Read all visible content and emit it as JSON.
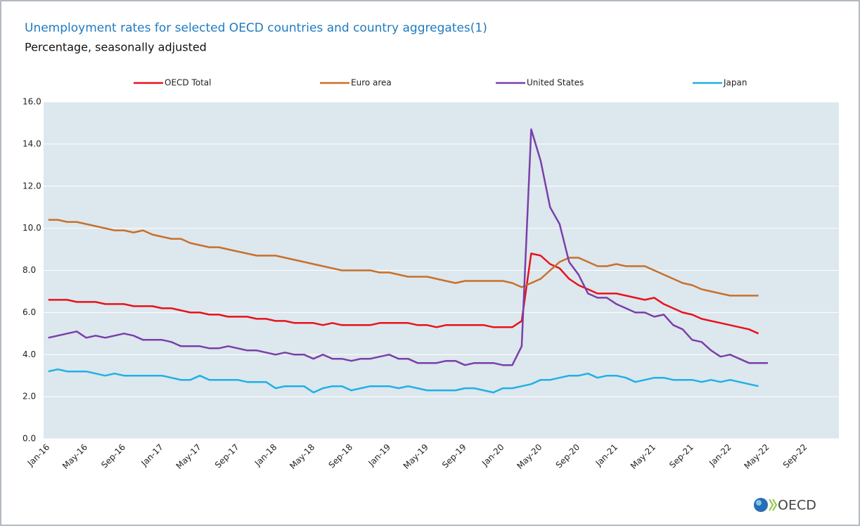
{
  "chart_data": {
    "type": "line",
    "title": "Unemployment rates for selected OECD countries and country aggregates(1)",
    "subtitle": "Percentage, seasonally adjusted",
    "categories": [
      "Jan-16",
      null,
      null,
      null,
      "May-16",
      null,
      null,
      null,
      "Sep-16",
      null,
      null,
      null,
      "Jan-17",
      null,
      null,
      null,
      "May-17",
      null,
      null,
      null,
      "Sep-17",
      null,
      null,
      null,
      "Jan-18",
      null,
      null,
      null,
      "May-18",
      null,
      null,
      null,
      "Sep-18",
      null,
      null,
      null,
      "Jan-19",
      null,
      null,
      null,
      "May-19",
      null,
      null,
      null,
      "Sep-19",
      null,
      null,
      null,
      "Jan-20",
      null,
      null,
      null,
      "May-20",
      null,
      null,
      null,
      "Sep-20",
      null,
      null,
      null,
      "Jan-21",
      null,
      null,
      null,
      "May-21",
      null,
      null,
      null,
      "Sep-21",
      null,
      null,
      null,
      "Jan-22",
      null,
      null,
      null,
      "May-22",
      null,
      null,
      null,
      "Sep-22",
      null,
      null,
      null
    ],
    "series": [
      {
        "name": "OECD Total",
        "color": "#e8121b",
        "values": [
          6.6,
          6.6,
          6.6,
          6.5,
          6.5,
          6.5,
          6.4,
          6.4,
          6.4,
          6.3,
          6.3,
          6.3,
          6.2,
          6.2,
          6.1,
          6.0,
          6.0,
          5.9,
          5.9,
          5.8,
          5.8,
          5.8,
          5.7,
          5.7,
          5.6,
          5.6,
          5.5,
          5.5,
          5.5,
          5.4,
          5.5,
          5.4,
          5.4,
          5.4,
          5.4,
          5.5,
          5.5,
          5.5,
          5.5,
          5.4,
          5.4,
          5.3,
          5.4,
          5.4,
          5.4,
          5.4,
          5.4,
          5.3,
          5.3,
          5.3,
          5.6,
          8.8,
          8.7,
          8.3,
          8.1,
          7.6,
          7.3,
          7.1,
          6.9,
          6.9,
          6.9,
          6.8,
          6.7,
          6.6,
          6.7,
          6.4,
          6.2,
          6.0,
          5.9,
          5.7,
          5.6,
          5.5,
          5.4,
          5.3,
          5.2,
          5.0,
          null,
          null,
          null,
          null,
          null,
          null,
          null,
          null
        ]
      },
      {
        "name": "Euro area",
        "color": "#c8702a",
        "values": [
          10.4,
          10.4,
          10.3,
          10.3,
          10.2,
          10.1,
          10.0,
          9.9,
          9.9,
          9.8,
          9.9,
          9.7,
          9.6,
          9.5,
          9.5,
          9.3,
          9.2,
          9.1,
          9.1,
          9.0,
          8.9,
          8.8,
          8.7,
          8.7,
          8.7,
          8.6,
          8.5,
          8.4,
          8.3,
          8.2,
          8.1,
          8.0,
          8.0,
          8.0,
          8.0,
          7.9,
          7.9,
          7.8,
          7.7,
          7.7,
          7.7,
          7.6,
          7.5,
          7.4,
          7.5,
          7.5,
          7.5,
          7.5,
          7.5,
          7.4,
          7.2,
          7.4,
          7.6,
          8.0,
          8.4,
          8.6,
          8.6,
          8.4,
          8.2,
          8.2,
          8.3,
          8.2,
          8.2,
          8.2,
          8.0,
          7.8,
          7.6,
          7.4,
          7.3,
          7.1,
          7.0,
          6.9,
          6.8,
          6.8,
          6.8,
          6.8,
          null,
          null,
          null,
          null,
          null,
          null,
          null,
          null
        ]
      },
      {
        "name": "United States",
        "color": "#7a3fa8",
        "values": [
          4.8,
          4.9,
          5.0,
          5.1,
          4.8,
          4.9,
          4.8,
          4.9,
          5.0,
          4.9,
          4.7,
          4.7,
          4.7,
          4.6,
          4.4,
          4.4,
          4.4,
          4.3,
          4.3,
          4.4,
          4.3,
          4.2,
          4.2,
          4.1,
          4.0,
          4.1,
          4.0,
          4.0,
          3.8,
          4.0,
          3.8,
          3.8,
          3.7,
          3.8,
          3.8,
          3.9,
          4.0,
          3.8,
          3.8,
          3.6,
          3.6,
          3.6,
          3.7,
          3.7,
          3.5,
          3.6,
          3.6,
          3.6,
          3.5,
          3.5,
          4.4,
          14.7,
          13.2,
          11.0,
          10.2,
          8.4,
          7.8,
          6.9,
          6.7,
          6.7,
          6.4,
          6.2,
          6.0,
          6.0,
          5.8,
          5.9,
          5.4,
          5.2,
          4.7,
          4.6,
          4.2,
          3.9,
          4.0,
          3.8,
          3.6,
          3.6,
          3.6,
          null,
          null,
          null,
          null,
          null,
          null,
          null
        ]
      },
      {
        "name": "Japan",
        "color": "#1fb0e6",
        "values": [
          3.2,
          3.3,
          3.2,
          3.2,
          3.2,
          3.1,
          3.0,
          3.1,
          3.0,
          3.0,
          3.0,
          3.0,
          3.0,
          2.9,
          2.8,
          2.8,
          3.0,
          2.8,
          2.8,
          2.8,
          2.8,
          2.7,
          2.7,
          2.7,
          2.4,
          2.5,
          2.5,
          2.5,
          2.2,
          2.4,
          2.5,
          2.5,
          2.3,
          2.4,
          2.5,
          2.5,
          2.5,
          2.4,
          2.5,
          2.4,
          2.3,
          2.3,
          2.3,
          2.3,
          2.4,
          2.4,
          2.3,
          2.2,
          2.4,
          2.4,
          2.5,
          2.6,
          2.8,
          2.8,
          2.9,
          3.0,
          3.0,
          3.1,
          2.9,
          3.0,
          3.0,
          2.9,
          2.7,
          2.8,
          2.9,
          2.9,
          2.8,
          2.8,
          2.8,
          2.7,
          2.8,
          2.7,
          2.8,
          2.7,
          2.6,
          2.5,
          null,
          null,
          null,
          null,
          null,
          null,
          null,
          null
        ]
      }
    ],
    "ylim": [
      0,
      16
    ],
    "yticks": [
      {
        "value": 0,
        "label": "0.0"
      },
      {
        "value": 2,
        "label": "2.0"
      },
      {
        "value": 4,
        "label": "4.0"
      },
      {
        "value": 6,
        "label": "6.0"
      },
      {
        "value": 8,
        "label": "8.0"
      },
      {
        "value": 10,
        "label": "10.0"
      },
      {
        "value": 12,
        "label": "12.0"
      },
      {
        "value": 14,
        "label": "14.0"
      },
      {
        "value": 16,
        "label": "16.0"
      }
    ],
    "grid": true,
    "legend": "top"
  },
  "logo_text": "OECD"
}
